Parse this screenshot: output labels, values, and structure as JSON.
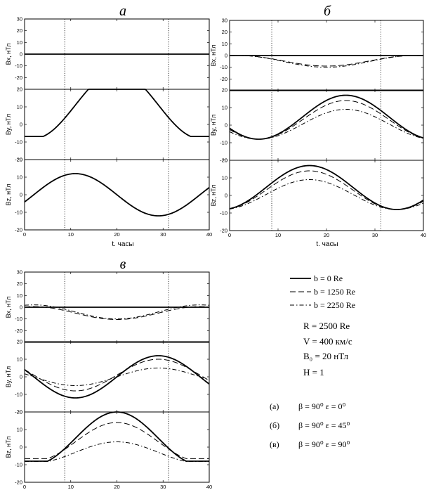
{
  "chart_data": [
    {
      "id": "a",
      "type": "line",
      "title": "а",
      "xlabel": "t. часы",
      "xlim": [
        0,
        40
      ],
      "xticks": [
        0,
        10,
        20,
        30,
        40
      ],
      "vlines": [
        8.7,
        31.2
      ],
      "subplots": [
        {
          "ylabel": "Bx, нТл",
          "ylim": [
            -30,
            30
          ],
          "yticks": [
            -20,
            -10,
            0,
            10,
            20,
            30
          ],
          "series": [
            {
              "name": "b = 0 Re",
              "style": "solid",
              "model": {
                "offset": 0,
                "amp": 0,
                "peak": 20
              }
            }
          ]
        },
        {
          "ylabel": "By, нТл",
          "ylim": [
            -20,
            20
          ],
          "yticks": [
            -20,
            -10,
            0,
            10,
            20
          ],
          "series": [
            {
              "name": "b = 0 Re",
              "style": "solid",
              "model": {
                "offset": 11,
                "amp": 19,
                "peak": 20,
                "flat": [
                  4,
                  36
                ]
              }
            }
          ]
        },
        {
          "ylabel": "Bz, нТл",
          "ylim": [
            -20,
            20
          ],
          "yticks": [
            -20,
            -10,
            0,
            10,
            20
          ],
          "series": [
            {
              "name": "b = 0 Re",
              "style": "solid",
              "model": {
                "offset": 0,
                "amp": 12,
                "peak": 11
              }
            }
          ]
        }
      ]
    },
    {
      "id": "b",
      "type": "line",
      "title": "б",
      "xlabel": "t. часы",
      "xlim": [
        0,
        40
      ],
      "xticks": [
        0,
        10,
        20,
        30,
        40
      ],
      "vlines": [
        8.7,
        31.2
      ],
      "subplots": [
        {
          "ylabel": "Bx, нТл",
          "ylim": [
            -30,
            30
          ],
          "yticks": [
            -20,
            -10,
            0,
            10,
            20,
            30
          ],
          "series": [
            {
              "name": "b = 0 Re",
              "style": "solid",
              "model": {
                "offset": 0,
                "amp": 0,
                "peak": 20
              }
            },
            {
              "name": "b = 1250 Re",
              "style": "dash",
              "model": {
                "offset": -4.5,
                "amp": -4.5,
                "peak": 20
              }
            },
            {
              "name": "b = 2250 Re",
              "style": "dashdot",
              "model": {
                "offset": -5,
                "amp": -5,
                "peak": 20
              }
            }
          ]
        },
        {
          "ylabel": "By, нТл",
          "ylim": [
            -20,
            20
          ],
          "yticks": [
            -20,
            -10,
            0,
            10,
            20
          ],
          "series": [
            {
              "name": "b = 0 Re",
              "style": "solid",
              "model": {
                "offset": 4.5,
                "amp": 12.5,
                "peak": 24
              }
            },
            {
              "name": "b = 1250 Re",
              "style": "dash",
              "model": {
                "offset": 3,
                "amp": 11,
                "peak": 24
              }
            },
            {
              "name": "b = 2250 Re",
              "style": "dashdot",
              "model": {
                "offset": 0.5,
                "amp": 8.5,
                "peak": 24
              }
            }
          ]
        },
        {
          "ylabel": "Bz, нТл",
          "ylim": [
            -20,
            20
          ],
          "yticks": [
            -20,
            -10,
            0,
            10,
            20
          ],
          "series": [
            {
              "name": "b = 0 Re",
              "style": "solid",
              "model": {
                "offset": 4.5,
                "amp": 12.5,
                "peak": 16.5
              }
            },
            {
              "name": "b = 1250 Re",
              "style": "dash",
              "model": {
                "offset": 3,
                "amp": 11,
                "peak": 16.5
              }
            },
            {
              "name": "b = 2250 Re",
              "style": "dashdot",
              "model": {
                "offset": 0.5,
                "amp": 8.5,
                "peak": 16.5
              }
            }
          ]
        }
      ]
    },
    {
      "id": "c",
      "type": "line",
      "title": "в",
      "xlabel": "",
      "xlim": [
        0,
        40
      ],
      "xticks": [
        0,
        10,
        20,
        30,
        40
      ],
      "vlines": [
        8.7,
        31.2
      ],
      "subplots": [
        {
          "ylabel": "Bx, нТл",
          "ylim": [
            -30,
            30
          ],
          "yticks": [
            -20,
            -10,
            0,
            10,
            20,
            30
          ],
          "series": [
            {
              "name": "b = 0 Re",
              "style": "solid",
              "model": {
                "offset": 0,
                "amp": 0,
                "peak": 20
              }
            },
            {
              "name": "b = 1250 Re",
              "style": "dash",
              "model": {
                "offset": -5,
                "amp": -5.5,
                "peak": 20
              }
            },
            {
              "name": "b = 2250 Re",
              "style": "dashdot",
              "model": {
                "offset": -4,
                "amp": -6,
                "peak": 20
              }
            }
          ]
        },
        {
          "ylabel": "By, нТл",
          "ylim": [
            -20,
            20
          ],
          "yticks": [
            -20,
            -10,
            0,
            10,
            20
          ],
          "series": [
            {
              "name": "b = 0 Re",
              "style": "solid",
              "model": {
                "offset": 0,
                "amp": 12,
                "peak": 29
              }
            },
            {
              "name": "b = 1250 Re",
              "style": "dash",
              "model": {
                "offset": 1,
                "amp": 9,
                "peak": 29
              }
            },
            {
              "name": "b = 2250 Re",
              "style": "dashdot",
              "model": {
                "offset": 0,
                "amp": 5,
                "peak": 29
              }
            }
          ]
        },
        {
          "ylabel": "Bz, нТл",
          "ylim": [
            -20,
            20
          ],
          "yticks": [
            -20,
            -10,
            0,
            10,
            20
          ],
          "series": [
            {
              "name": "b = 0 Re",
              "style": "solid",
              "model": {
                "offset": 5,
                "amp": 15,
                "peak": 20,
                "flat": [
                  5,
                  35
                ]
              }
            },
            {
              "name": "b = 1250 Re",
              "style": "dash",
              "model": {
                "offset": 3,
                "amp": 11,
                "peak": 20,
                "flat": [
                  5,
                  35
                ]
              }
            },
            {
              "name": "b = 2250 Re",
              "style": "dashdot",
              "model": {
                "offset": -3,
                "amp": 6,
                "peak": 20,
                "flat": [
                  5,
                  35
                ]
              }
            }
          ]
        }
      ]
    }
  ],
  "legend": {
    "entries": [
      {
        "label": "b = 0 Re",
        "style": "solid"
      },
      {
        "label": "b = 1250 Re",
        "style": "dash"
      },
      {
        "label": "b = 2250 Re",
        "style": "dashdot"
      }
    ]
  },
  "params": {
    "R": "R = 2500 Re",
    "V": "V = 400 км/с",
    "B0": "B₀ = 20 нТл",
    "H": "H = 1"
  },
  "cases": [
    {
      "tag": "(а)",
      "text": "β = 90⁰  ε = 0⁰"
    },
    {
      "tag": "(б)",
      "text": "β = 90⁰  ε = 45⁰"
    },
    {
      "tag": "(в)",
      "text": "β = 90⁰  ε = 90⁰"
    }
  ],
  "colors": {
    "line": "#000000",
    "background": "#ffffff"
  }
}
